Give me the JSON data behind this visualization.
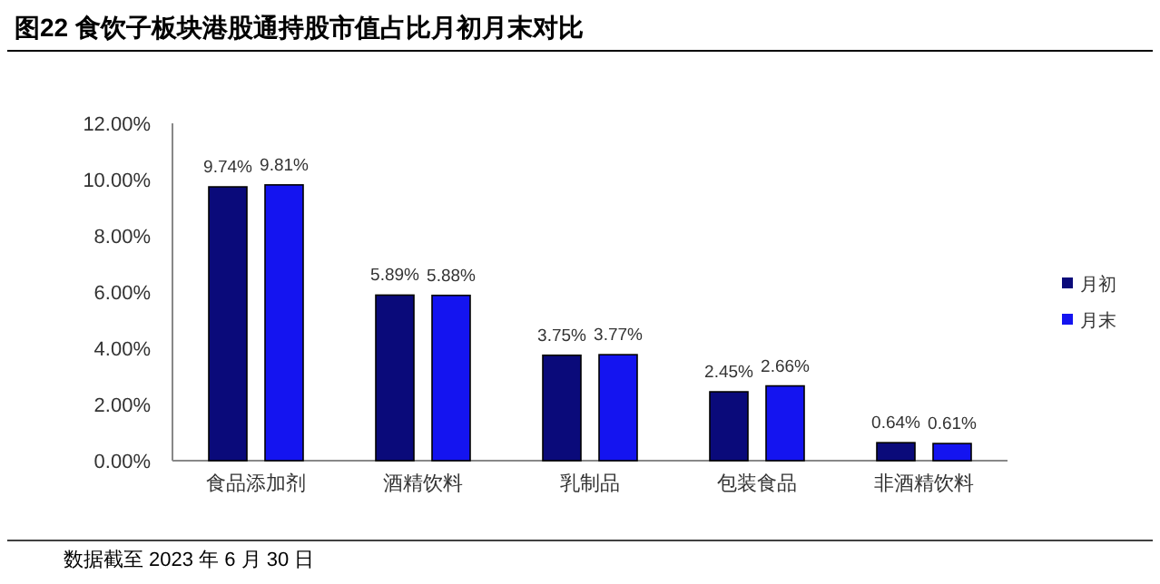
{
  "chart_data": {
    "type": "bar",
    "title": "图22 食饮子板块港股通持股市值占比月初月末对比",
    "categories": [
      "食品添加剂",
      "酒精饮料",
      "乳制品",
      "包装食品",
      "非酒精饮料"
    ],
    "series": [
      {
        "name": "月初",
        "color": "#0a0a7a",
        "values": [
          9.74,
          5.89,
          3.75,
          2.45,
          0.64
        ],
        "value_labels": [
          "9.74%",
          "5.89%",
          "3.75%",
          "2.45%",
          "0.64%"
        ]
      },
      {
        "name": "月末",
        "color": "#1414f0",
        "values": [
          9.81,
          5.88,
          3.77,
          2.66,
          0.61
        ],
        "value_labels": [
          "9.81%",
          "5.88%",
          "3.77%",
          "2.66%",
          "0.61%"
        ]
      }
    ],
    "ylim": [
      0,
      12
    ],
    "yticks": [
      {
        "value": 0,
        "label": "0.00%"
      },
      {
        "value": 2,
        "label": "2.00%"
      },
      {
        "value": 4,
        "label": "4.00%"
      },
      {
        "value": 6,
        "label": "6.00%"
      },
      {
        "value": 8,
        "label": "8.00%"
      },
      {
        "value": 10,
        "label": "10.00%"
      },
      {
        "value": 12,
        "label": "12.00%"
      }
    ],
    "grid": false,
    "legend": "right",
    "annotations": [
      "数据截至 2023 年 6 月 30 日"
    ]
  }
}
